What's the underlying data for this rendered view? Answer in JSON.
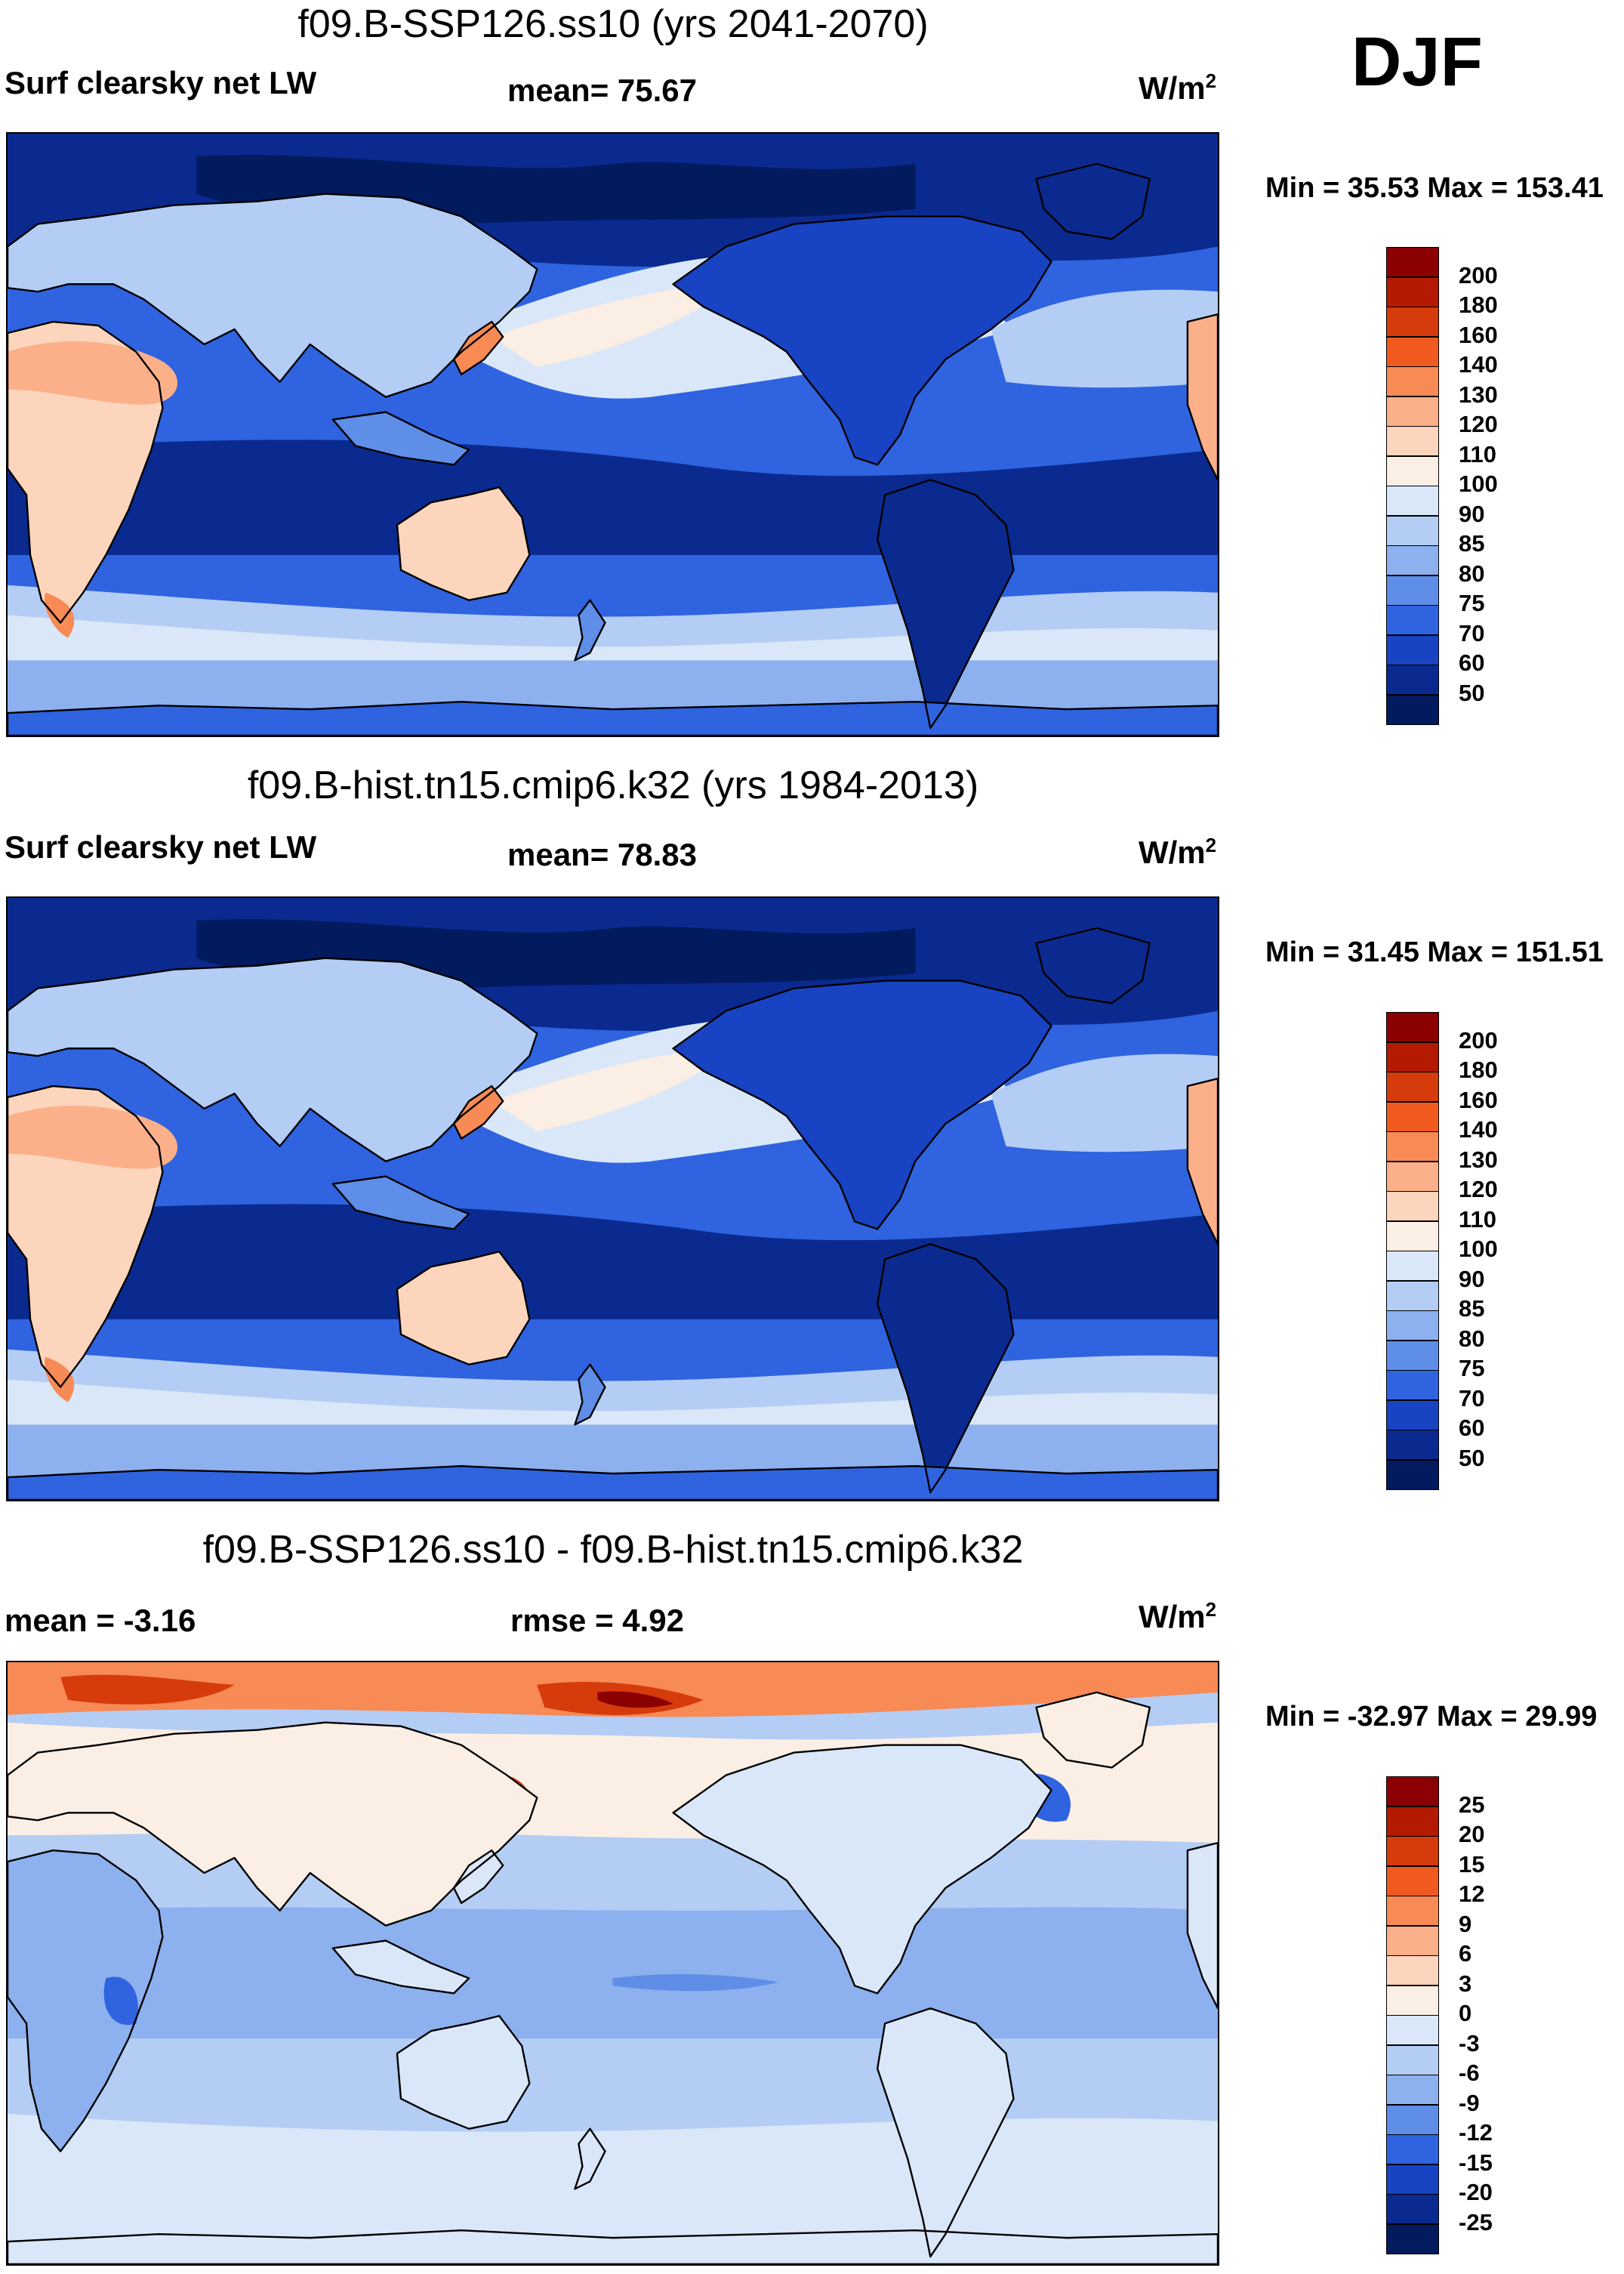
{
  "season": "DJF",
  "panels": [
    {
      "title": "f09.B-SSP126.ss10 (yrs 2041-2070)",
      "left_label": "Surf clearsky net LW",
      "mid_label": "mean=  75.67",
      "units": "W/m",
      "units_sup": "2",
      "minmax": "Min =  35.53 Max = 153.41",
      "colorbar": {
        "levels": [
          "200",
          "180",
          "160",
          "140",
          "130",
          "120",
          "110",
          "100",
          "90",
          "85",
          "80",
          "75",
          "70",
          "60",
          "50"
        ],
        "colors": [
          "#8b0000",
          "#b31a00",
          "#d63b0b",
          "#f05a1e",
          "#f78a55",
          "#fbb08a",
          "#fdd5bd",
          "#fbeee4",
          "#d9e7f8",
          "#b3cdf4",
          "#8db0ee",
          "#5f8ee8",
          "#2f63e0",
          "#1843c2",
          "#0a2a8f",
          "#021a5e"
        ]
      },
      "map_theme": "absolute"
    },
    {
      "title": "f09.B-hist.tn15.cmip6.k32 (yrs 1984-2013)",
      "left_label": "Surf clearsky net LW",
      "mid_label": "mean=  78.83",
      "units": "W/m",
      "units_sup": "2",
      "minmax": "Min =  31.45 Max = 151.51",
      "colorbar": {
        "levels": [
          "200",
          "180",
          "160",
          "140",
          "130",
          "120",
          "110",
          "100",
          "90",
          "85",
          "80",
          "75",
          "70",
          "60",
          "50"
        ],
        "colors": [
          "#8b0000",
          "#b31a00",
          "#d63b0b",
          "#f05a1e",
          "#f78a55",
          "#fbb08a",
          "#fdd5bd",
          "#fbeee4",
          "#d9e7f8",
          "#b3cdf4",
          "#8db0ee",
          "#5f8ee8",
          "#2f63e0",
          "#1843c2",
          "#0a2a8f",
          "#021a5e"
        ]
      },
      "map_theme": "absolute"
    },
    {
      "title": "f09.B-SSP126.ss10 - f09.B-hist.tn15.cmip6.k32",
      "left_label": "mean =  -3.16",
      "mid_label": "rmse =    4.92",
      "units": "W/m",
      "units_sup": "2",
      "minmax": "Min = -32.97 Max =  29.99",
      "colorbar": {
        "levels": [
          "25",
          "20",
          "15",
          "12",
          "9",
          "6",
          "3",
          "0",
          "-3",
          "-6",
          "-9",
          "-12",
          "-15",
          "-20",
          "-25"
        ],
        "colors": [
          "#8b0000",
          "#b31a00",
          "#d63b0b",
          "#f05a1e",
          "#f78a55",
          "#fbb08a",
          "#fdd5bd",
          "#fbeee4",
          "#d9e7f8",
          "#b3cdf4",
          "#8db0ee",
          "#5f8ee8",
          "#2f63e0",
          "#1843c2",
          "#0a2a8f",
          "#021a5e"
        ]
      },
      "map_theme": "difference"
    }
  ]
}
